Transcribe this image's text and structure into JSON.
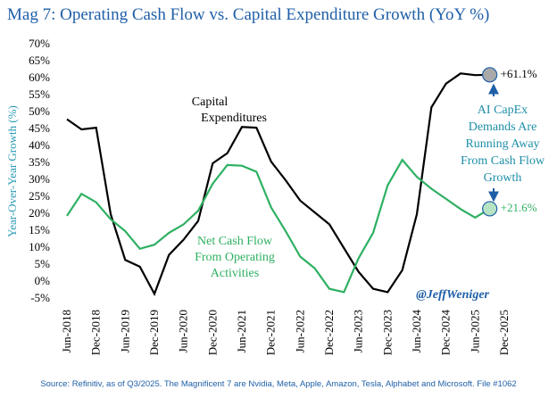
{
  "chart_data": {
    "type": "line",
    "title": "Mag 7: Operating Cash Flow vs. Capital Expenditure Growth (YoY %)",
    "y_label": "Year-Over-Year Growth (%)",
    "categories": [
      "Jun-2018",
      null,
      "Dec-2018",
      null,
      "Jun-2019",
      null,
      "Dec-2019",
      null,
      "Jun-2020",
      null,
      "Dec-2020",
      null,
      "Jun-2021",
      null,
      "Dec-2021",
      null,
      "Jun-2022",
      null,
      "Dec-2022",
      null,
      "Jun-2023",
      null,
      "Dec-2023",
      null,
      "Jun-2024",
      null,
      "Dec-2024",
      null,
      "Jun-2025",
      null,
      "Dec-2025"
    ],
    "series": [
      {
        "name": "Capital Expenditures",
        "color": "#000000",
        "values": [
          48,
          45,
          45.5,
          20,
          6.5,
          4.5,
          -3.5,
          8,
          12.5,
          18,
          35,
          38,
          45.7,
          45.5,
          35.5,
          30,
          24,
          20.5,
          17,
          10,
          3,
          -2,
          -3,
          3.5,
          20,
          51.5,
          58.5,
          61.5,
          61,
          61.1,
          null
        ],
        "value_labels": [
          null,
          null,
          null,
          null,
          null,
          null,
          null,
          null,
          null,
          null,
          null,
          null,
          null,
          null,
          null,
          null,
          null,
          null,
          null,
          null,
          null,
          null,
          null,
          null,
          null,
          null,
          null,
          null,
          null,
          "+61.1%",
          null
        ]
      },
      {
        "name": "Net Cash Flow From Operating Activities",
        "color": "#2eb062",
        "values": [
          19.5,
          26,
          23.5,
          18.5,
          15,
          9.8,
          11,
          14.5,
          17,
          21,
          29,
          34.5,
          34.3,
          32.5,
          22,
          15,
          7.5,
          4,
          -2,
          -3,
          7,
          14.5,
          28.5,
          36,
          31,
          27.5,
          24.5,
          21.5,
          19,
          21.6,
          null
        ],
        "value_labels": [
          null,
          null,
          null,
          null,
          null,
          null,
          null,
          null,
          null,
          null,
          null,
          null,
          null,
          null,
          null,
          null,
          null,
          null,
          null,
          null,
          null,
          null,
          null,
          null,
          null,
          null,
          null,
          null,
          null,
          "+21.6%",
          null
        ]
      }
    ],
    "ylim": [
      -5,
      70
    ],
    "yticks": [
      {
        "value": -5,
        "label": "-5%"
      },
      {
        "value": 0,
        "label": "0%"
      },
      {
        "value": 5,
        "label": "5%"
      },
      {
        "value": 10,
        "label": "10%"
      },
      {
        "value": 15,
        "label": "15%"
      },
      {
        "value": 20,
        "label": "20%"
      },
      {
        "value": 25,
        "label": "25%"
      },
      {
        "value": 30,
        "label": "30%"
      },
      {
        "value": 35,
        "label": "35%"
      },
      {
        "value": 40,
        "label": "40%"
      },
      {
        "value": 45,
        "label": "45%"
      },
      {
        "value": 50,
        "label": "50%"
      },
      {
        "value": 55,
        "label": "55%"
      },
      {
        "value": 60,
        "label": "60%"
      },
      {
        "value": 65,
        "label": "65%"
      },
      {
        "value": 70,
        "label": "70%"
      }
    ],
    "grid": false,
    "capex_label": [
      "Capital",
      "Expenditures"
    ],
    "cash_label": [
      "Net Cash Flow",
      "From Operating",
      "Activities"
    ],
    "note": [
      "AI CapEx",
      "Demands Are",
      "Running Away",
      "From Cash Flow",
      "Growth"
    ],
    "watermark": "@JeffWeniger",
    "source": "Source: Refinitiv, as of Q3/2025. The Magnificent 7 are Nvidia, Meta, Apple, Amazon, Tesla, Alphabet and Microsoft. File #1062"
  }
}
